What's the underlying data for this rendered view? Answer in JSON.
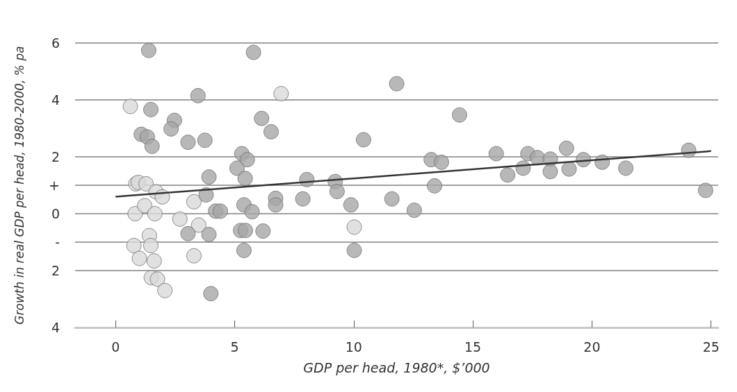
{
  "chart_data": {
    "type": "scatter",
    "xlabel": "GDP per head, 1980*, $’000",
    "ylabel": "Growth in real GDP per head, 1980-2000, % pa",
    "xlim": [
      -1.7,
      25.3
    ],
    "xticks": [
      0,
      5,
      10,
      15,
      20,
      25
    ],
    "ylim": [
      -4,
      6
    ],
    "yticks": [
      6,
      4,
      2,
      {
        "value": 1,
        "label": "+"
      },
      0,
      {
        "value": -1,
        "label": "-"
      },
      {
        "value": -2,
        "label": "2"
      },
      {
        "value": -4,
        "label": "4"
      }
    ],
    "grid": "y",
    "marker": "circle",
    "series": [
      {
        "color": "#d9d9d9",
        "x": [
          0.62,
          0.85,
          0.95,
          1.28,
          0.82,
          0.77,
          1.0,
          1.42,
          1.48,
          1.62,
          1.5,
          1.76,
          2.07,
          1.22,
          1.7,
          1.96,
          1.65,
          2.7,
          3.29,
          3.49,
          3.29,
          6.95,
          10.02
        ],
        "values": [
          3.77,
          1.05,
          1.1,
          1.05,
          0,
          -1.12,
          -1.57,
          -0.77,
          -1.12,
          -1.66,
          -2.25,
          -2.3,
          -2.7,
          0.28,
          0.77,
          0.59,
          0,
          -0.19,
          0.42,
          -0.4,
          -1.48,
          4.22,
          -0.47
        ]
      },
      {
        "color": "#a6a6a6",
        "x": [
          1.39,
          3.46,
          1.48,
          2.47,
          2.33,
          1.08,
          1.33,
          1.53,
          3.04,
          3.75,
          3.92,
          3.8,
          4.2,
          4.4,
          3.04,
          3.92,
          4.0,
          5.79,
          11.8,
          14.44,
          6.13,
          6.53,
          10.41,
          5.3,
          5.53,
          5.1,
          5.44,
          8.03,
          9.22,
          9.3,
          5.39,
          5.73,
          6.72,
          6.72,
          7.86,
          9.88,
          11.6,
          12.54,
          13.39,
          13.25,
          13.68,
          5.25,
          5.45,
          6.19,
          5.39,
          10.02,
          15.98,
          16.46,
          17.11,
          17.31,
          17.71,
          18.25,
          18.25,
          18.93,
          19.04,
          19.64,
          20.43,
          21.42,
          24.06,
          24.77
        ],
        "values": [
          5.74,
          4.15,
          3.66,
          3.28,
          2.98,
          2.79,
          2.7,
          2.37,
          2.51,
          2.58,
          1.29,
          0.66,
          0.09,
          0.09,
          -0.7,
          -0.73,
          -2.81,
          5.67,
          4.57,
          3.47,
          3.35,
          2.88,
          2.6,
          2.11,
          1.9,
          1.6,
          1.24,
          1.2,
          1.13,
          0.78,
          0.31,
          0.07,
          0.54,
          0.31,
          0.52,
          0.31,
          0.52,
          0.12,
          0.98,
          1.9,
          1.81,
          -0.59,
          -0.59,
          -0.61,
          -1.29,
          -1.29,
          2.11,
          1.36,
          1.6,
          2.11,
          1.97,
          1.92,
          1.48,
          2.3,
          1.57,
          1.9,
          1.81,
          1.6,
          2.23,
          0.82
        ]
      },
      {
        "type": "line",
        "color": "#333333",
        "marker": "none",
        "x": [
          0,
          25
        ],
        "values": [
          0.6,
          2.2
        ]
      }
    ]
  }
}
